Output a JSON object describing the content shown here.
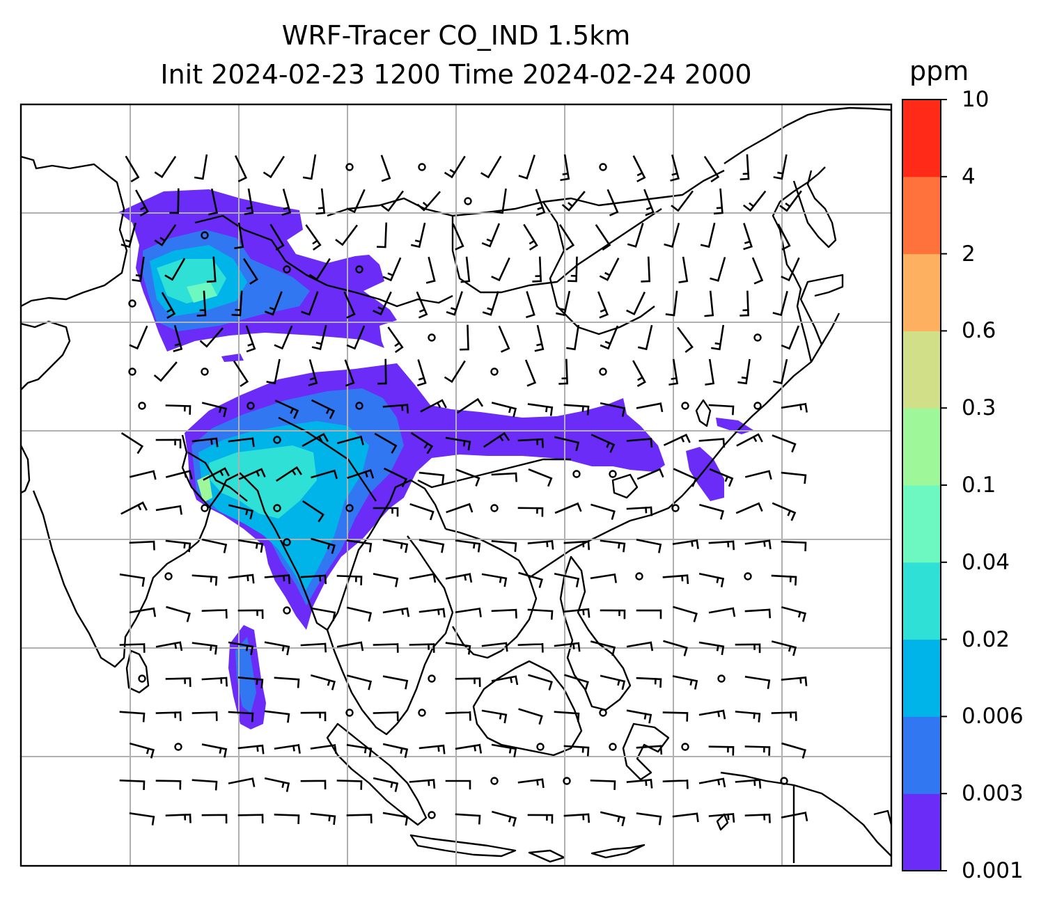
{
  "title": {
    "line1": "WRF-Tracer CO_IND 1.5km",
    "line2": "Init 2024-02-23 1200 Time 2024-02-24 2000"
  },
  "colorbar": {
    "unit": "ppm",
    "levels": [
      "0.001",
      "0.003",
      "0.006",
      "0.02",
      "0.04",
      "0.1",
      "0.3",
      "0.6",
      "2",
      "4",
      "10"
    ],
    "colors": [
      "#6a2cf6",
      "#3277f2",
      "#00b4ea",
      "#2fe0d6",
      "#6cf8c0",
      "#9ef89a",
      "#d1e088",
      "#fdb05f",
      "#ff723b",
      "#ff2a17"
    ]
  },
  "map": {
    "gridlines": "on",
    "field_colors": {
      "low": "#6a2cf6",
      "mid1": "#3277f2",
      "mid2": "#00b4ea",
      "mid3": "#2fe0d6",
      "high": "#6cf8c0",
      "peak": "#9ef89a"
    },
    "wind_symbols": "wind barbs and calm circles"
  }
}
